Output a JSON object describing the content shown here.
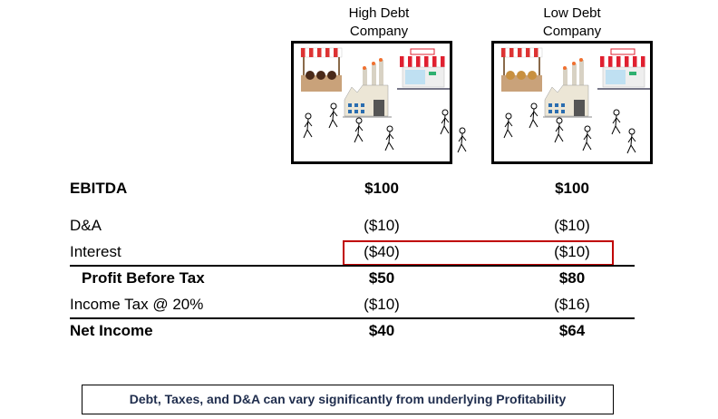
{
  "columns": [
    {
      "title_line1": "High Debt",
      "title_line2": "Company"
    },
    {
      "title_line1": "Low Debt",
      "title_line2": "Company"
    }
  ],
  "rows": [
    {
      "label": "EBITDA",
      "values": [
        "$100",
        "$100"
      ],
      "bold": true
    },
    {
      "label": "D&A",
      "values": [
        "($10)",
        "($10)"
      ]
    },
    {
      "label": "Interest",
      "values": [
        "($40)",
        "($10)"
      ],
      "highlighted": true
    },
    {
      "label": "Profit Before Tax",
      "values": [
        "$50",
        "$80"
      ],
      "bold": true
    },
    {
      "label": "Income Tax @ 20%",
      "values": [
        "($10)",
        "($16)"
      ]
    },
    {
      "label": "Net Income",
      "values": [
        "$40",
        "$64"
      ],
      "bold": true
    }
  ],
  "note": "Debt, Taxes, and D&A can vary significantly from underlying Profitability",
  "colors": {
    "highlight": "#c00000",
    "note_text": "#1f2d4d"
  },
  "icons": [
    "market-stall-icon",
    "factory-icon",
    "storefront-icon",
    "person-walking-icon"
  ]
}
